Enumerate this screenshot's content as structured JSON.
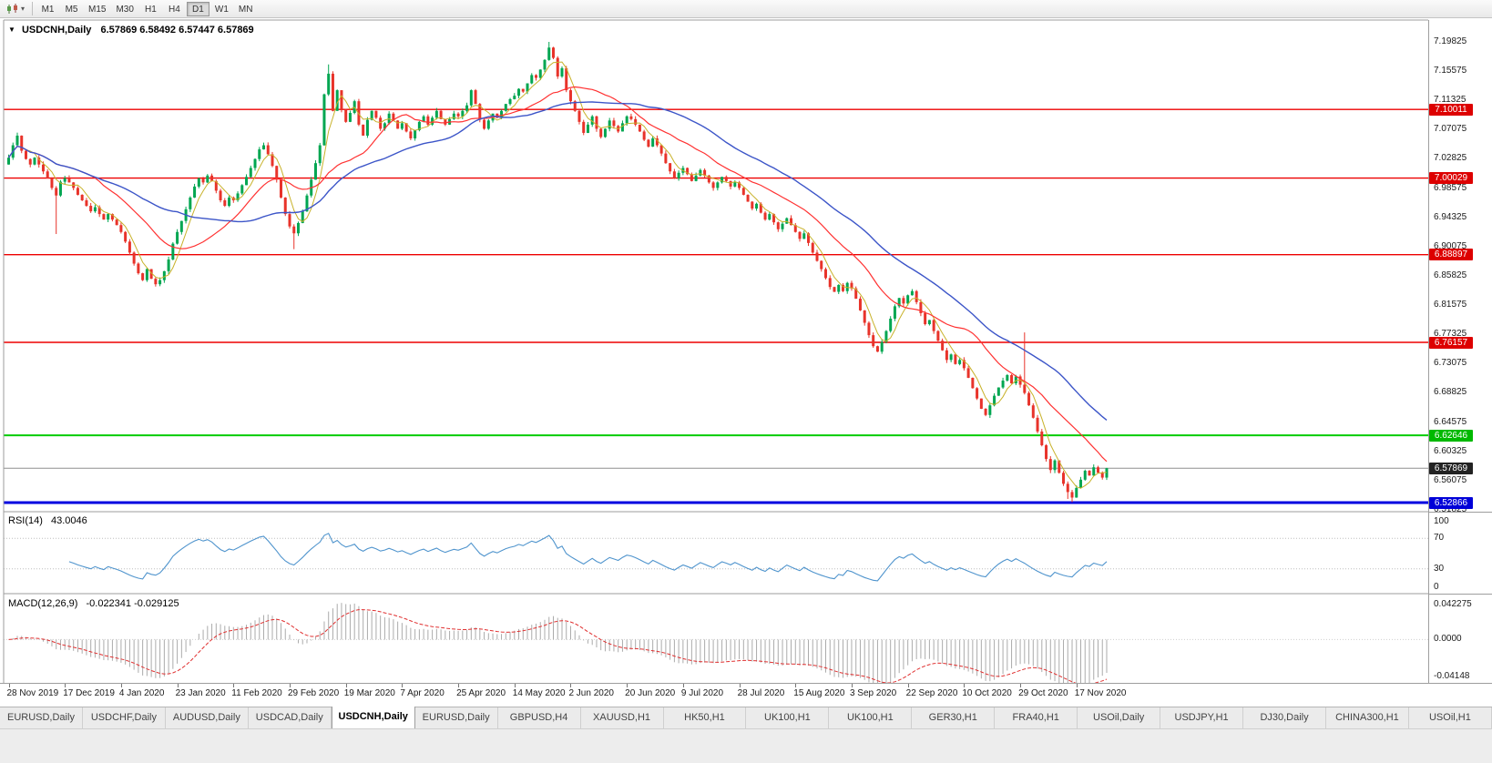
{
  "toolbar": {
    "timeframes": [
      "M1",
      "M5",
      "M15",
      "M30",
      "H1",
      "H4",
      "D1",
      "W1",
      "MN"
    ],
    "active": "D1"
  },
  "header": {
    "symbol_title": "USDCNH,Daily",
    "ohlc_text": "6.57869 6.58492 6.57447 6.57869"
  },
  "chart_data": {
    "type": "candlestick",
    "symbol": "USDCNH",
    "period": "Daily",
    "y_ticks": [
      "7.19825",
      "7.15575",
      "7.11325",
      "7.07075",
      "7.02825",
      "6.98575",
      "6.94325",
      "6.90075",
      "6.85825",
      "6.81575",
      "6.77325",
      "6.73075",
      "6.68825",
      "6.64575",
      "6.60325",
      "6.56075",
      "6.51825"
    ],
    "x_labels": [
      "28 Nov 2019",
      "17 Dec 2019",
      "4 Jan 2020",
      "23 Jan 2020",
      "11 Feb 2020",
      "29 Feb 2020",
      "19 Mar 2020",
      "7 Apr 2020",
      "25 Apr 2020",
      "14 May 2020",
      "2 Jun 2020",
      "20 Jun 2020",
      "9 Jul 2020",
      "28 Jul 2020",
      "15 Aug 2020",
      "3 Sep 2020",
      "22 Sep 2020",
      "10 Oct 2020",
      "29 Oct 2020",
      "17 Nov 2020"
    ],
    "x_label_every": 13,
    "first_open": 7.02,
    "closes": [
      7.03,
      7.048,
      7.062,
      7.04,
      7.028,
      7.02,
      7.03,
      7.02,
      7.01,
      7.0,
      6.986,
      6.975,
      6.995,
      7.0,
      6.994,
      6.986,
      6.976,
      6.968,
      6.96,
      6.952,
      6.958,
      6.948,
      6.94,
      6.948,
      6.94,
      6.932,
      6.922,
      6.908,
      6.892,
      6.876,
      6.862,
      6.852,
      6.868,
      6.854,
      6.846,
      6.852,
      6.865,
      6.882,
      6.905,
      6.922,
      6.938,
      6.955,
      6.972,
      6.988,
      7.0,
      6.994,
      7.004,
      6.996,
      6.982,
      6.968,
      6.96,
      6.972,
      6.968,
      6.978,
      6.99,
      7.002,
      7.015,
      7.028,
      7.042,
      7.048,
      7.035,
      7.018,
      6.998,
      6.972,
      6.948,
      6.93,
      6.92,
      6.935,
      6.952,
      6.975,
      6.998,
      7.022,
      7.048,
      7.122,
      7.152,
      7.098,
      7.128,
      7.1,
      7.082,
      7.095,
      7.112,
      7.078,
      7.062,
      7.085,
      7.098,
      7.088,
      7.072,
      7.08,
      7.094,
      7.084,
      7.072,
      7.08,
      7.068,
      7.058,
      7.07,
      7.082,
      7.09,
      7.078,
      7.088,
      7.098,
      7.086,
      7.078,
      7.086,
      7.094,
      7.09,
      7.098,
      7.106,
      7.128,
      7.108,
      7.085,
      7.072,
      7.084,
      7.094,
      7.088,
      7.098,
      7.108,
      7.115,
      7.12,
      7.13,
      7.126,
      7.138,
      7.15,
      7.146,
      7.158,
      7.172,
      7.19,
      7.175,
      7.148,
      7.16,
      7.128,
      7.112,
      7.098,
      7.082,
      7.066,
      7.078,
      7.09,
      7.072,
      7.06,
      7.072,
      7.084,
      7.076,
      7.068,
      7.08,
      7.09,
      7.086,
      7.078,
      7.068,
      7.056,
      7.046,
      7.058,
      7.048,
      7.036,
      7.022,
      7.01,
      7.0,
      7.008,
      7.015,
      7.006,
      6.996,
      7.004,
      7.012,
      7.004,
      6.994,
      6.986,
      6.994,
      7.002,
      6.996,
      6.988,
      6.994,
      6.986,
      6.976,
      6.966,
      6.956,
      6.963,
      6.95,
      6.94,
      6.948,
      6.936,
      6.926,
      6.934,
      6.942,
      6.932,
      6.922,
      6.912,
      6.92,
      6.906,
      6.892,
      6.88,
      6.868,
      6.855,
      6.842,
      6.835,
      6.845,
      6.836,
      6.848,
      6.84,
      6.825,
      6.808,
      6.79,
      6.772,
      6.756,
      6.748,
      6.762,
      6.778,
      6.796,
      6.814,
      6.826,
      6.818,
      6.83,
      6.836,
      6.82,
      6.804,
      6.788,
      6.794,
      6.778,
      6.764,
      6.75,
      6.736,
      6.744,
      6.73,
      6.736,
      6.724,
      6.71,
      6.695,
      6.68,
      6.665,
      6.656,
      6.67,
      6.684,
      6.696,
      6.706,
      6.714,
      6.702,
      6.712,
      6.7,
      6.688,
      6.67,
      6.652,
      6.632,
      6.612,
      6.592,
      6.576,
      6.59,
      6.572,
      6.556,
      6.544,
      6.536,
      6.55,
      6.562,
      6.575,
      6.568,
      6.58,
      6.572,
      6.565,
      6.57869
    ],
    "wick_overrides": {
      "11": {
        "low": 6.919
      },
      "66": {
        "low": 6.897
      },
      "74": {
        "high": 7.1655
      },
      "125": {
        "high": 7.19825
      },
      "235": {
        "high": 6.776
      },
      "245": {
        "low": 6.534
      },
      "246": {
        "low": 6.5292
      }
    },
    "horizontal_levels": [
      {
        "value": 7.10011,
        "label": "7.10011",
        "color": "#EE0000",
        "width": 1.4
      },
      {
        "value": 7.00029,
        "label": "7.00029",
        "color": "#EE0000",
        "width": 1.4
      },
      {
        "value": 6.88897,
        "label": "6.88897",
        "color": "#EE0000",
        "width": 1.4
      },
      {
        "value": 6.76157,
        "label": "6.76157",
        "color": "#EE0000",
        "width": 1.4
      },
      {
        "value": 6.62646,
        "label": "6.62646",
        "color": "#00CC00",
        "width": 2
      },
      {
        "value": 6.52866,
        "label": "6.52866",
        "color": "#0000E0",
        "width": 3
      }
    ],
    "last_price": 6.57869,
    "moving_averages": [
      {
        "period": 5,
        "color": "#C8B22A",
        "width": 1
      },
      {
        "period": 20,
        "color": "#FF3232",
        "width": 1.2
      },
      {
        "period": 40,
        "color": "#3C55C8",
        "width": 1.4
      }
    ]
  },
  "price_tags": [
    {
      "label": "7.10011",
      "bg": "#DD0000"
    },
    {
      "label": "7.00029",
      "bg": "#DD0000"
    },
    {
      "label": "6.88897",
      "bg": "#DD0000"
    },
    {
      "label": "6.76157",
      "bg": "#DD0000"
    },
    {
      "label": "6.62646",
      "bg": "#00B900"
    },
    {
      "label": "6.57869",
      "bg": "#222222"
    },
    {
      "label": "6.52866",
      "bg": "#0000D8"
    }
  ],
  "rsi": {
    "title": "RSI(14)",
    "value": "43.0046",
    "period": 14,
    "axis_labels": [
      "100",
      "70",
      "30",
      "0"
    ],
    "levels": [
      70,
      30
    ]
  },
  "macd": {
    "title": "MACD(12,26,9)",
    "values": "-0.022341 -0.029125",
    "main_value": -0.022341,
    "signal_value": -0.029125,
    "axis_labels": [
      "0.042275",
      "0.0000",
      "-0.04148"
    ],
    "range": [
      -0.04148,
      0.042275
    ]
  },
  "tabs": {
    "items": [
      "EURUSD,Daily",
      "USDCHF,Daily",
      "AUDUSD,Daily",
      "USDCAD,Daily",
      "USDCNH,Daily",
      "EURUSD,Daily",
      "GBPUSD,H4",
      "XAUUSD,H1",
      "HK50,H1",
      "UK100,H1",
      "UK100,H1",
      "GER30,H1",
      "FRA40,H1",
      "USOil,Daily",
      "USDJPY,H1",
      "DJ30,Daily",
      "CHINA300,H1",
      "USOil,H1"
    ],
    "active_index": 4
  },
  "colors": {
    "up_candle": "#00A651",
    "down_candle": "#E8332A",
    "rsi_line": "#4F94CD",
    "macd_histogram": "#ABABAB",
    "macd_signal": "#E03030",
    "bid_line": "#8f8f8f",
    "axis_text": "#1A1A1A",
    "pane_border": "#9E9E9E"
  }
}
